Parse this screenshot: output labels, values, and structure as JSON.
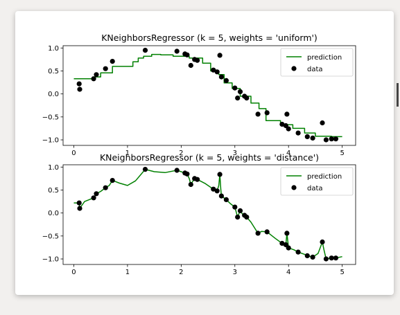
{
  "chart_data": [
    {
      "type": "line",
      "title": "KNeighborsRegressor (k = 5, weights = 'uniform')",
      "xlim": [
        -0.2,
        5.25
      ],
      "ylim": [
        -1.12,
        1.05
      ],
      "xticks": [
        0,
        1,
        2,
        3,
        4,
        5
      ],
      "xtick_labels": [
        "0",
        "1",
        "2",
        "3",
        "4",
        "5"
      ],
      "yticks": [
        1.0,
        0.5,
        0.0,
        -0.5,
        -1.0
      ],
      "ytick_labels": [
        "1.0",
        "0.5",
        "0.0",
        "−0.5",
        "−1.0"
      ],
      "legend": {
        "placement": "top-right",
        "entries": [
          "prediction",
          "data"
        ]
      },
      "series": [
        {
          "name": "prediction",
          "kind": "line",
          "color": "#008000",
          "x": [
            0.0,
            0.35,
            0.35,
            0.5,
            0.5,
            0.72,
            0.72,
            1.1,
            1.1,
            1.2,
            1.2,
            1.3,
            1.3,
            1.45,
            1.45,
            1.62,
            1.62,
            1.85,
            1.85,
            2.15,
            2.15,
            2.4,
            2.4,
            2.55,
            2.55,
            2.7,
            2.7,
            2.8,
            2.8,
            2.95,
            2.95,
            3.1,
            3.1,
            3.3,
            3.3,
            3.45,
            3.45,
            3.58,
            3.58,
            3.85,
            3.85,
            4.08,
            4.08,
            4.3,
            4.3,
            4.5,
            4.5,
            4.8,
            4.8,
            5.0
          ],
          "y": [
            0.33,
            0.33,
            0.37,
            0.37,
            0.46,
            0.46,
            0.6,
            0.6,
            0.7,
            0.7,
            0.78,
            0.78,
            0.82,
            0.82,
            0.86,
            0.86,
            0.85,
            0.85,
            0.82,
            0.82,
            0.78,
            0.78,
            0.67,
            0.67,
            0.5,
            0.5,
            0.42,
            0.42,
            0.24,
            0.24,
            0.12,
            0.12,
            -0.05,
            -0.05,
            -0.2,
            -0.2,
            -0.32,
            -0.32,
            -0.58,
            -0.58,
            -0.67,
            -0.67,
            -0.75,
            -0.75,
            -0.85,
            -0.85,
            -0.92,
            -0.92,
            -0.93,
            -0.93
          ]
        },
        {
          "name": "data",
          "kind": "scatter",
          "color": "#000000",
          "x": [
            0.1,
            0.11,
            0.37,
            0.42,
            0.59,
            0.72,
            1.33,
            1.92,
            2.07,
            2.11,
            2.18,
            2.25,
            2.3,
            2.6,
            2.67,
            2.72,
            2.75,
            2.84,
            3.0,
            3.05,
            3.1,
            3.18,
            3.22,
            3.43,
            3.6,
            3.88,
            3.95,
            3.97,
            4.0,
            4.18,
            4.35,
            4.45,
            4.63,
            4.7,
            4.8,
            4.88
          ],
          "y": [
            0.22,
            0.1,
            0.33,
            0.42,
            0.55,
            0.71,
            0.95,
            0.93,
            0.87,
            0.85,
            0.62,
            0.75,
            0.73,
            0.52,
            0.48,
            0.84,
            0.37,
            0.29,
            0.13,
            -0.09,
            0.05,
            -0.05,
            -0.09,
            -0.44,
            -0.41,
            -0.66,
            -0.69,
            -0.44,
            -0.76,
            -0.85,
            -0.93,
            -0.96,
            -0.63,
            -1.0,
            -0.98,
            -0.98
          ]
        }
      ]
    },
    {
      "type": "line",
      "title": "KNeighborsRegressor (k = 5, weights = 'distance')",
      "xlim": [
        -0.2,
        5.25
      ],
      "ylim": [
        -1.12,
        1.05
      ],
      "xticks": [
        0,
        1,
        2,
        3,
        4,
        5
      ],
      "xtick_labels": [
        "0",
        "1",
        "2",
        "3",
        "4",
        "5"
      ],
      "yticks": [
        1.0,
        0.5,
        0.0,
        -0.5,
        -1.0
      ],
      "ytick_labels": [
        "1.0",
        "0.5",
        "0.0",
        "−0.5",
        "−1.0"
      ],
      "legend": {
        "placement": "top-right",
        "entries": [
          "prediction",
          "data"
        ]
      },
      "series": [
        {
          "name": "prediction",
          "kind": "line",
          "color": "#008000",
          "x": [
            0.0,
            0.1,
            0.11,
            0.2,
            0.37,
            0.42,
            0.5,
            0.59,
            0.66,
            0.72,
            0.85,
            1.0,
            1.15,
            1.33,
            1.5,
            1.7,
            1.92,
            2.0,
            2.07,
            2.11,
            2.15,
            2.18,
            2.22,
            2.25,
            2.3,
            2.45,
            2.6,
            2.67,
            2.7,
            2.72,
            2.74,
            2.75,
            2.84,
            2.92,
            3.0,
            3.05,
            3.08,
            3.1,
            3.14,
            3.18,
            3.22,
            3.3,
            3.43,
            3.5,
            3.6,
            3.75,
            3.88,
            3.95,
            3.97,
            4.0,
            4.1,
            4.18,
            4.3,
            4.35,
            4.45,
            4.55,
            4.63,
            4.66,
            4.7,
            4.8,
            4.88,
            5.0
          ],
          "y": [
            0.22,
            0.22,
            0.1,
            0.25,
            0.33,
            0.42,
            0.47,
            0.55,
            0.6,
            0.71,
            0.65,
            0.6,
            0.7,
            0.95,
            0.9,
            0.88,
            0.93,
            0.9,
            0.87,
            0.85,
            0.75,
            0.62,
            0.7,
            0.75,
            0.73,
            0.64,
            0.52,
            0.48,
            0.6,
            0.84,
            0.5,
            0.37,
            0.29,
            0.2,
            0.13,
            -0.09,
            0.0,
            0.05,
            -0.02,
            -0.05,
            -0.09,
            -0.2,
            -0.44,
            -0.4,
            -0.41,
            -0.55,
            -0.66,
            -0.69,
            -0.44,
            -0.76,
            -0.8,
            -0.85,
            -0.9,
            -0.93,
            -0.96,
            -0.88,
            -0.63,
            -0.8,
            -1.0,
            -0.98,
            -0.98,
            -0.95
          ]
        },
        {
          "name": "data",
          "kind": "scatter",
          "color": "#000000",
          "x": [
            0.1,
            0.11,
            0.37,
            0.42,
            0.59,
            0.72,
            1.33,
            1.92,
            2.07,
            2.11,
            2.18,
            2.25,
            2.3,
            2.6,
            2.67,
            2.72,
            2.75,
            2.84,
            3.0,
            3.05,
            3.1,
            3.18,
            3.22,
            3.43,
            3.6,
            3.88,
            3.95,
            3.97,
            4.0,
            4.18,
            4.35,
            4.45,
            4.63,
            4.7,
            4.8,
            4.88
          ],
          "y": [
            0.22,
            0.1,
            0.33,
            0.42,
            0.55,
            0.71,
            0.95,
            0.93,
            0.87,
            0.85,
            0.62,
            0.75,
            0.73,
            0.52,
            0.48,
            0.84,
            0.37,
            0.29,
            0.13,
            -0.09,
            0.05,
            -0.05,
            -0.09,
            -0.44,
            -0.41,
            -0.66,
            -0.69,
            -0.44,
            -0.76,
            -0.85,
            -0.93,
            -0.96,
            -0.63,
            -1.0,
            -0.98,
            -0.98
          ]
        }
      ]
    }
  ]
}
